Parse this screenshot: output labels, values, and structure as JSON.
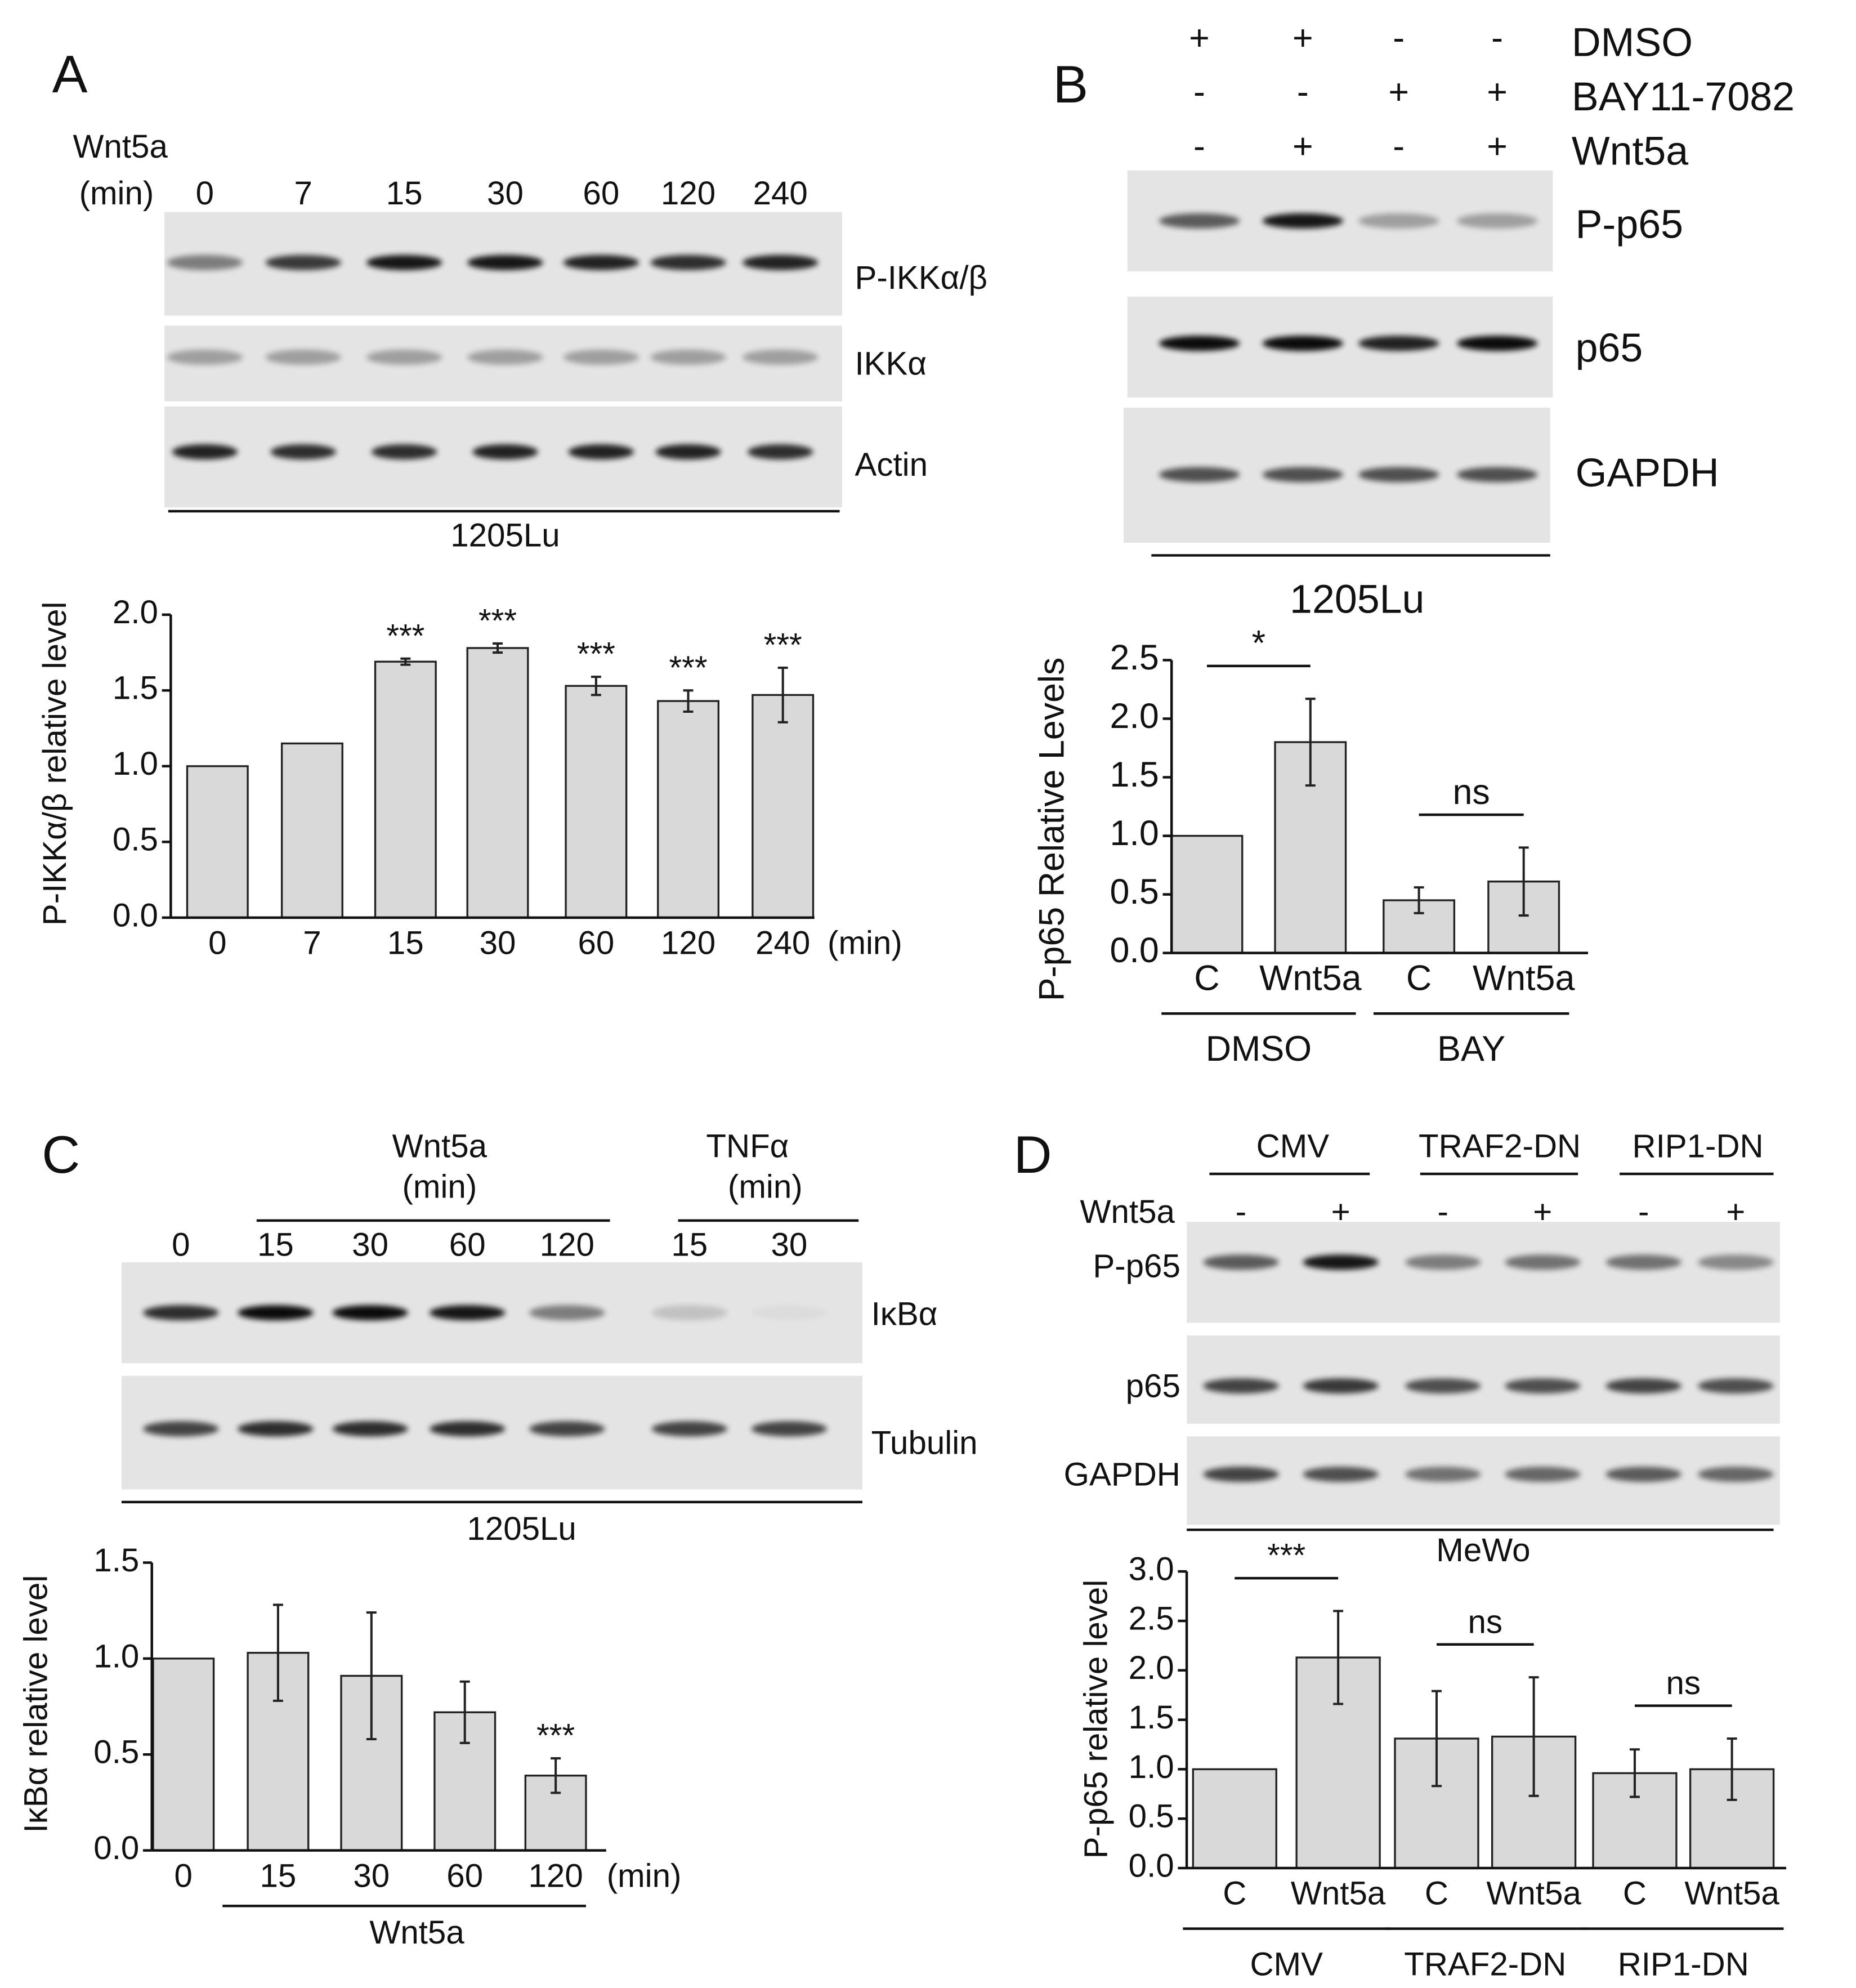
{
  "panels": [
    {
      "letter": "A",
      "treatment": "Wnt5a",
      "unit": "(min)",
      "lanes": [
        "0",
        "7",
        "15",
        "30",
        "60",
        "120",
        "240"
      ],
      "blots": [
        "P-IKKα/β",
        "IKKα",
        "Actin"
      ],
      "cell_line": "1205Lu"
    },
    {
      "letter": "B",
      "conditions": [
        {
          "name": "DMSO",
          "signs": [
            "+",
            "+",
            "-",
            "-"
          ]
        },
        {
          "name": "BAY11-7082",
          "signs": [
            "-",
            "-",
            "+",
            "+"
          ]
        },
        {
          "name": "Wnt5a",
          "signs": [
            "-",
            "+",
            "-",
            "+"
          ]
        }
      ],
      "blots": [
        "P-p65",
        "p65",
        "GAPDH"
      ],
      "cell_line": "1205Lu"
    },
    {
      "letter": "C",
      "groups": [
        {
          "name": "Wnt5a",
          "unit": "(min)"
        },
        {
          "name": "TNFα",
          "unit": "(min)"
        }
      ],
      "lanes": [
        "0",
        "15",
        "30",
        "60",
        "120",
        "15",
        "30"
      ],
      "blots": [
        "IκBα",
        "Tubulin"
      ],
      "cell_line": "1205Lu"
    },
    {
      "letter": "D",
      "groups": [
        "CMV",
        "TRAF2-DN",
        "RIP1-DN"
      ],
      "conditions": [
        {
          "name": "Wnt5a",
          "signs": [
            "-",
            "+",
            "-",
            "+",
            "-",
            "+"
          ]
        }
      ],
      "blots": [
        "P-p65",
        "p65",
        "GAPDH"
      ],
      "cell_line": "MeWo"
    }
  ],
  "chart_data": [
    {
      "type": "bar",
      "ylabel": "P-IKKα/β relative level",
      "x_unit": "(min)",
      "color": "#d9d9d9",
      "categories": [
        "0",
        "7",
        "15",
        "30",
        "60",
        "120",
        "240"
      ],
      "values": [
        1.0,
        1.15,
        1.69,
        1.78,
        1.53,
        1.43,
        1.47
      ],
      "errors": [
        null,
        null,
        0.02,
        0.03,
        0.06,
        0.07,
        0.18
      ],
      "annotations": [
        null,
        null,
        "***",
        "***",
        "***",
        "***",
        "***"
      ],
      "ylim": [
        0,
        2
      ],
      "yticks": [
        {
          "value": 0,
          "label": "0.0"
        },
        0.5,
        {
          "value": 1,
          "label": "1.0"
        },
        1.5,
        {
          "value": 2,
          "label": "2.0"
        }
      ]
    },
    {
      "type": "bar",
      "ylabel": "P-p65 Relative Levels",
      "color": "#d9d9d9",
      "categories": [
        "C",
        "Wnt5a",
        "C",
        "Wnt5a"
      ],
      "groups": [
        {
          "name": "DMSO",
          "significance": "*"
        },
        {
          "name": "BAY",
          "significance": "ns"
        }
      ],
      "values": [
        1.0,
        1.8,
        0.45,
        0.61
      ],
      "errors": [
        null,
        0.37,
        0.11,
        0.29
      ],
      "ylim": [
        0,
        2.5
      ],
      "yticks": [
        {
          "value": 0,
          "label": "0.0"
        },
        0.5,
        {
          "value": 1,
          "label": "1.0"
        },
        1.5,
        {
          "value": 2,
          "label": "2.0"
        },
        2.5
      ]
    },
    {
      "type": "bar",
      "ylabel": "IκBα relative level",
      "x_unit": "(min)",
      "xgroup_label": "Wnt5a",
      "color": "#d9d9d9",
      "categories": [
        "0",
        "15",
        "30",
        "60",
        "120"
      ],
      "values": [
        1.0,
        1.03,
        0.91,
        0.72,
        0.39
      ],
      "errors": [
        null,
        0.25,
        0.33,
        0.16,
        0.09
      ],
      "annotations": [
        null,
        null,
        null,
        null,
        "***"
      ],
      "ylim": [
        0,
        1.5
      ],
      "yticks": [
        {
          "value": 0,
          "label": "0.0"
        },
        0.5,
        {
          "value": 1,
          "label": "1.0"
        },
        1.5
      ]
    },
    {
      "type": "bar",
      "ylabel": "P-p65 relative level",
      "color": "#d9d9d9",
      "categories": [
        "C",
        "Wnt5a",
        "C",
        "Wnt5a",
        "C",
        "Wnt5a"
      ],
      "groups": [
        {
          "name": "CMV",
          "significance": "***"
        },
        {
          "name": "TRAF2-DN",
          "significance": "ns"
        },
        {
          "name": "RIP1-DN",
          "significance": "ns"
        }
      ],
      "values": [
        1.0,
        2.13,
        1.31,
        1.33,
        0.96,
        1.0
      ],
      "errors": [
        null,
        0.47,
        0.48,
        0.6,
        0.24,
        0.31
      ],
      "ylim": [
        0,
        3
      ],
      "yticks": [
        {
          "value": 0,
          "label": "0.0"
        },
        0.5,
        {
          "value": 1,
          "label": "1.0"
        },
        1.5,
        {
          "value": 2,
          "label": "2.0"
        },
        2.5,
        {
          "value": 3,
          "label": "3.0"
        }
      ]
    }
  ]
}
